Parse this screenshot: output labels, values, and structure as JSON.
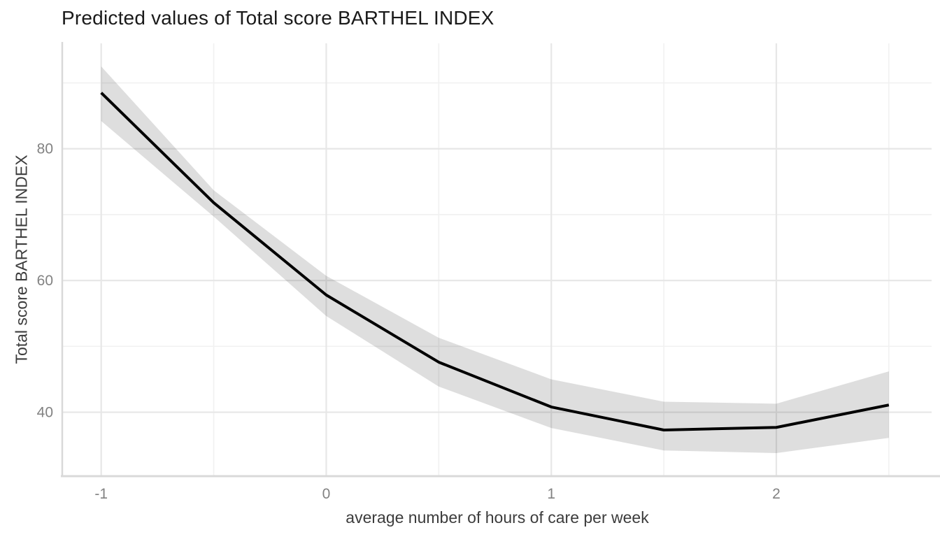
{
  "title": "Predicted values of Total score BARTHEL INDEX",
  "chart_data": {
    "type": "line",
    "title": "Predicted values of Total score BARTHEL INDEX",
    "xlabel": "average number of hours of care per week",
    "ylabel": "Total score BARTHEL INDEX",
    "x": [
      -1,
      -0.5,
      0,
      0.5,
      1,
      1.5,
      2,
      2.5
    ],
    "series": [
      {
        "name": "predicted",
        "values": [
          88.5,
          71.8,
          57.8,
          47.6,
          40.8,
          37.3,
          37.7,
          41.1
        ]
      }
    ],
    "ci_low": [
      84.2,
      69.7,
      54.6,
      43.9,
      37.6,
      34.2,
      33.8,
      36.1
    ],
    "ci_high": [
      92.5,
      73.7,
      60.7,
      51.3,
      45.0,
      41.6,
      41.3,
      46.2
    ],
    "xlim": [
      -1.17,
      2.69
    ],
    "ylim": [
      30.4,
      96.0
    ],
    "x_ticks": [
      -1,
      0,
      1,
      2
    ],
    "y_ticks": [
      40,
      60,
      80
    ],
    "x_minor_ticks": [
      -0.5,
      0.5,
      1.5,
      2.5
    ],
    "y_minor_ticks": [
      50,
      70,
      90
    ],
    "x_tick_labels": [
      "-1",
      "0",
      "1",
      "2"
    ],
    "y_tick_labels": [
      "40",
      "60",
      "80"
    ],
    "grid": true,
    "legend": "none",
    "colors": {
      "line": "#000000",
      "band": "rgba(0,0,0,0.13)",
      "grid_major": "#e7e7e7",
      "grid_minor": "#f1f1f1",
      "axis_line": "#d9d9d9",
      "tick_label": "#828282",
      "axis_title": "#3c3c3c",
      "title": "#1a1a1a",
      "background": "#ffffff"
    }
  }
}
